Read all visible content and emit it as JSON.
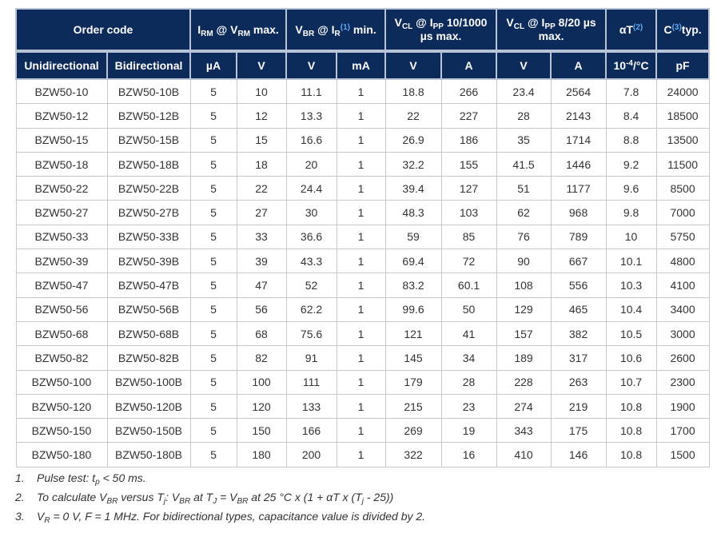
{
  "header_row1": [
    {
      "colspan": 2,
      "parts": [
        {
          "t": "Order code"
        }
      ]
    },
    {
      "colspan": 2,
      "parts": [
        {
          "t": "I"
        },
        {
          "t": "RM",
          "s": "sub"
        },
        {
          "t": " @ V"
        },
        {
          "t": "RM",
          "s": "sub"
        },
        {
          "t": " max."
        }
      ]
    },
    {
      "colspan": 2,
      "parts": [
        {
          "t": "V"
        },
        {
          "t": "BR",
          "s": "sub"
        },
        {
          "t": " @ I"
        },
        {
          "t": "R",
          "s": "sub"
        },
        {
          "t": "(1)",
          "s": "ref"
        },
        {
          "t": " min."
        }
      ]
    },
    {
      "colspan": 2,
      "parts": [
        {
          "t": "V"
        },
        {
          "t": "CL",
          "s": "sub"
        },
        {
          "t": " @ I"
        },
        {
          "t": "PP",
          "s": "sub"
        },
        {
          "t": " 10/1000 µs max."
        }
      ]
    },
    {
      "colspan": 2,
      "parts": [
        {
          "t": "V"
        },
        {
          "t": "CL",
          "s": "sub"
        },
        {
          "t": " @ I"
        },
        {
          "t": "PP",
          "s": "sub"
        },
        {
          "t": " 8/20 µs max."
        }
      ]
    },
    {
      "colspan": 1,
      "parts": [
        {
          "t": "αT"
        },
        {
          "t": "(2)",
          "s": "ref"
        }
      ]
    },
    {
      "colspan": 1,
      "parts": [
        {
          "t": "C"
        },
        {
          "t": "(3)",
          "s": "ref"
        },
        {
          "t": "typ."
        }
      ]
    }
  ],
  "header_row2": [
    {
      "parts": [
        {
          "t": "Unidirectional"
        }
      ]
    },
    {
      "parts": [
        {
          "t": "Bidirectional"
        }
      ]
    },
    {
      "parts": [
        {
          "t": "µA"
        }
      ]
    },
    {
      "parts": [
        {
          "t": "V"
        }
      ]
    },
    {
      "parts": [
        {
          "t": "V"
        }
      ]
    },
    {
      "parts": [
        {
          "t": "mA"
        }
      ]
    },
    {
      "parts": [
        {
          "t": "V"
        }
      ]
    },
    {
      "parts": [
        {
          "t": "A"
        }
      ]
    },
    {
      "parts": [
        {
          "t": "V"
        }
      ]
    },
    {
      "parts": [
        {
          "t": "A"
        }
      ]
    },
    {
      "parts": [
        {
          "t": "10"
        },
        {
          "t": "-4",
          "s": "sup"
        },
        {
          "t": "/°C"
        }
      ]
    },
    {
      "parts": [
        {
          "t": "pF"
        }
      ]
    }
  ],
  "rows": [
    [
      "BZW50-10",
      "BZW50-10B",
      "5",
      "10",
      "11.1",
      "1",
      "18.8",
      "266",
      "23.4",
      "2564",
      "7.8",
      "24000"
    ],
    [
      "BZW50-12",
      "BZW50-12B",
      "5",
      "12",
      "13.3",
      "1",
      "22",
      "227",
      "28",
      "2143",
      "8.4",
      "18500"
    ],
    [
      "BZW50-15",
      "BZW50-15B",
      "5",
      "15",
      "16.6",
      "1",
      "26.9",
      "186",
      "35",
      "1714",
      "8.8",
      "13500"
    ],
    [
      "BZW50-18",
      "BZW50-18B",
      "5",
      "18",
      "20",
      "1",
      "32.2",
      "155",
      "41.5",
      "1446",
      "9.2",
      "11500"
    ],
    [
      "BZW50-22",
      "BZW50-22B",
      "5",
      "22",
      "24.4",
      "1",
      "39.4",
      "127",
      "51",
      "1177",
      "9.6",
      "8500"
    ],
    [
      "BZW50-27",
      "BZW50-27B",
      "5",
      "27",
      "30",
      "1",
      "48.3",
      "103",
      "62",
      "968",
      "9.8",
      "7000"
    ],
    [
      "BZW50-33",
      "BZW50-33B",
      "5",
      "33",
      "36.6",
      "1",
      "59",
      "85",
      "76",
      "789",
      "10",
      "5750"
    ],
    [
      "BZW50-39",
      "BZW50-39B",
      "5",
      "39",
      "43.3",
      "1",
      "69.4",
      "72",
      "90",
      "667",
      "10.1",
      "4800"
    ],
    [
      "BZW50-47",
      "BZW50-47B",
      "5",
      "47",
      "52",
      "1",
      "83.2",
      "60.1",
      "108",
      "556",
      "10.3",
      "4100"
    ],
    [
      "BZW50-56",
      "BZW50-56B",
      "5",
      "56",
      "62.2",
      "1",
      "99.6",
      "50",
      "129",
      "465",
      "10.4",
      "3400"
    ],
    [
      "BZW50-68",
      "BZW50-68B",
      "5",
      "68",
      "75.6",
      "1",
      "121",
      "41",
      "157",
      "382",
      "10.5",
      "3000"
    ],
    [
      "BZW50-82",
      "BZW50-82B",
      "5",
      "82",
      "91",
      "1",
      "145",
      "34",
      "189",
      "317",
      "10.6",
      "2600"
    ],
    [
      "BZW50-100",
      "BZW50-100B",
      "5",
      "100",
      "111",
      "1",
      "179",
      "28",
      "228",
      "263",
      "10.7",
      "2300"
    ],
    [
      "BZW50-120",
      "BZW50-120B",
      "5",
      "120",
      "133",
      "1",
      "215",
      "23",
      "274",
      "219",
      "10.8",
      "1900"
    ],
    [
      "BZW50-150",
      "BZW50-150B",
      "5",
      "150",
      "166",
      "1",
      "269",
      "19",
      "343",
      "175",
      "10.8",
      "1700"
    ],
    [
      "BZW50-180",
      "BZW50-180B",
      "5",
      "180",
      "200",
      "1",
      "322",
      "16",
      "410",
      "146",
      "10.8",
      "1500"
    ]
  ],
  "notes": [
    {
      "num": "1.",
      "parts": [
        {
          "t": "Pulse test: t"
        },
        {
          "t": "p",
          "s": "sub"
        },
        {
          "t": " < 50 ms."
        }
      ]
    },
    {
      "num": "2.",
      "parts": [
        {
          "t": "To calculate V"
        },
        {
          "t": "BR",
          "s": "sub"
        },
        {
          "t": " versus T"
        },
        {
          "t": "j",
          "s": "sub"
        },
        {
          "t": ": V"
        },
        {
          "t": "BR",
          "s": "sub"
        },
        {
          "t": " at T"
        },
        {
          "t": "J",
          "s": "sub"
        },
        {
          "t": " = V"
        },
        {
          "t": "BR",
          "s": "sub"
        },
        {
          "t": " at 25 °C x (1 + αT x (T"
        },
        {
          "t": "j",
          "s": "sub"
        },
        {
          "t": " - 25))"
        }
      ]
    },
    {
      "num": "3.",
      "parts": [
        {
          "t": "V"
        },
        {
          "t": "R",
          "s": "sub"
        },
        {
          "t": " = 0 V, F = 1 MHz. For bidirectional types, capacitance value is divided by 2."
        }
      ]
    }
  ],
  "colors": {
    "header_bg": "#0c2a5a",
    "header_text": "#ffffff",
    "ref_mark": "#5aaaf0"
  }
}
